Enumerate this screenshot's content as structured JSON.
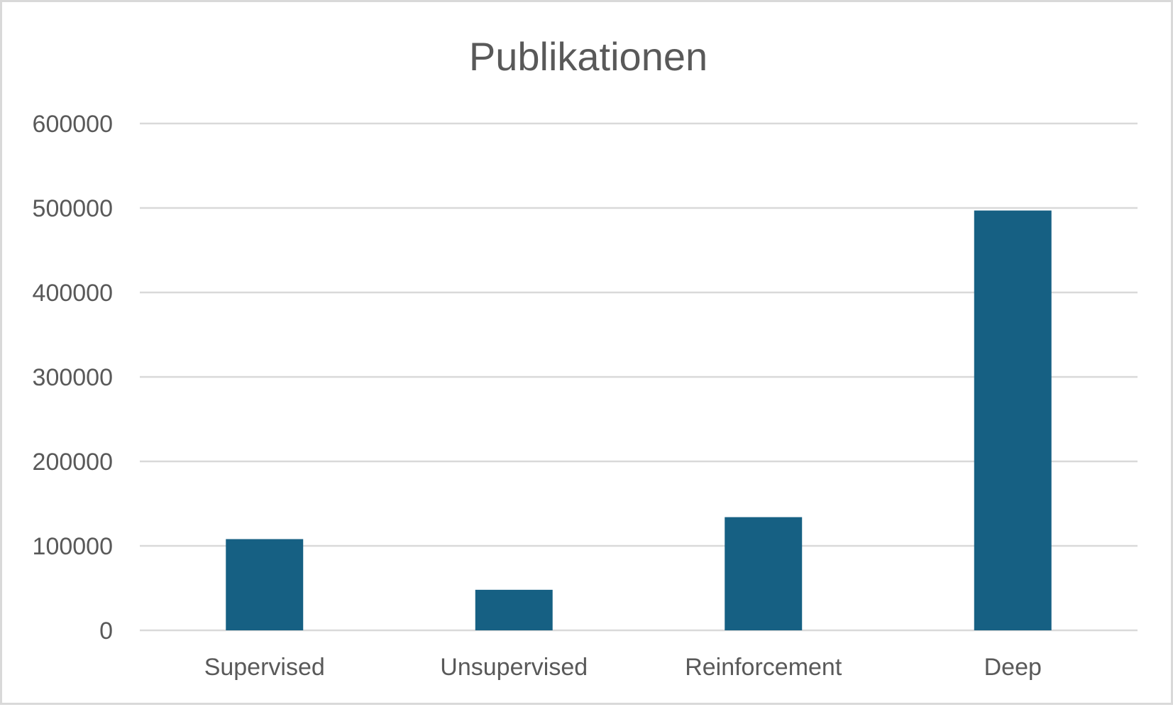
{
  "chart_data": {
    "type": "bar",
    "title": "Publikationen",
    "xlabel": "",
    "ylabel": "",
    "categories": [
      "Supervised",
      "Unsupervised",
      "Reinforcement",
      "Deep"
    ],
    "values": [
      108000,
      48000,
      134000,
      497000
    ],
    "ylim": [
      0,
      600000
    ],
    "yticks": [
      "0",
      "100000",
      "200000",
      "300000",
      "400000",
      "500000",
      "600000"
    ],
    "grid": true,
    "legend": "none",
    "bar_color": "#166083"
  }
}
